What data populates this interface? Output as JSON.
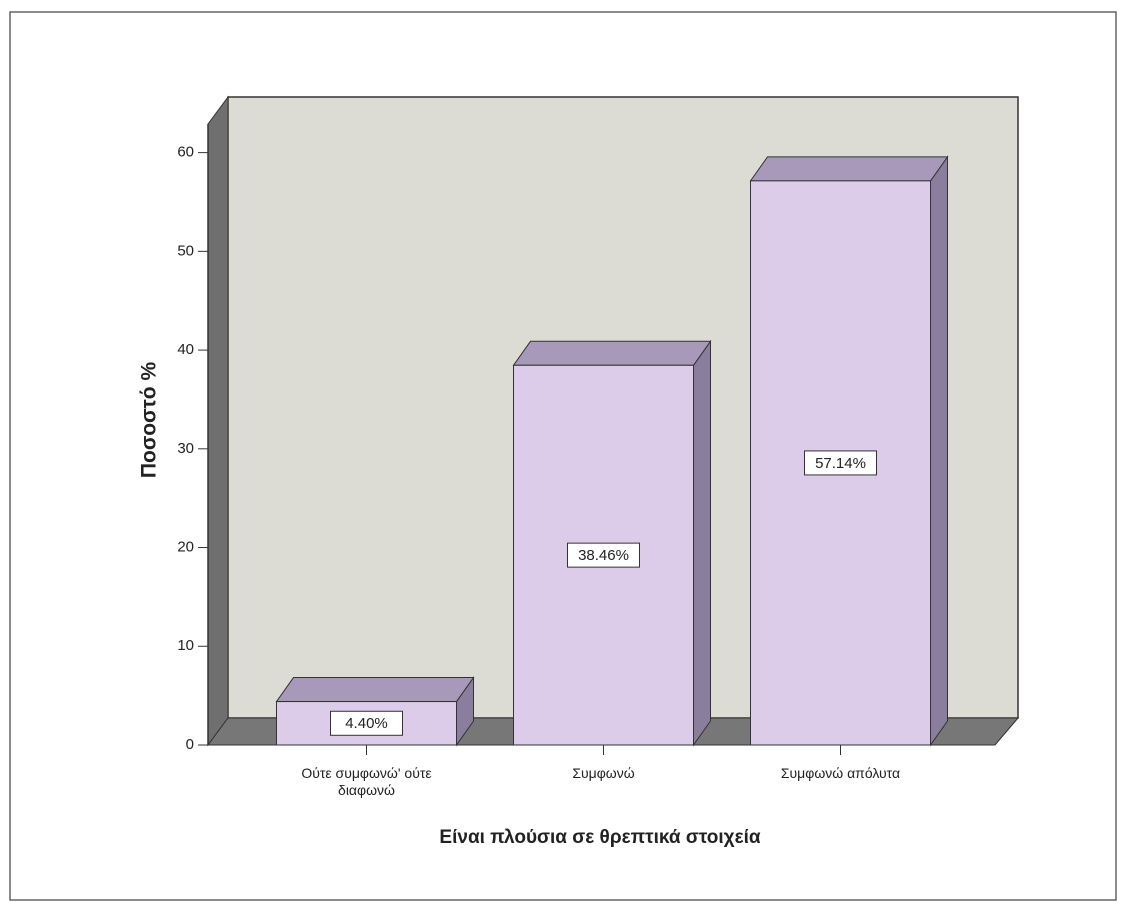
{
  "chart_data": {
    "type": "bar3d",
    "y_axis_label": "Ποσοστό   %",
    "x_axis_label": "Είναι πλούσια σε θρεπτικά στοιχεία",
    "categories": [
      "Ούτε συμφωνώ' ούτε διαφωνώ",
      "Συμφωνώ",
      "Συμφωνώ απόλυτα"
    ],
    "values": [
      4.4,
      38.46,
      57.14
    ],
    "value_labels": [
      "4.40%",
      "38.46%",
      "57.14%"
    ],
    "color": "#dccbe9",
    "ylim": [
      0,
      63
    ],
    "yticks": [
      0,
      10,
      20,
      30,
      40,
      50,
      60
    ]
  }
}
